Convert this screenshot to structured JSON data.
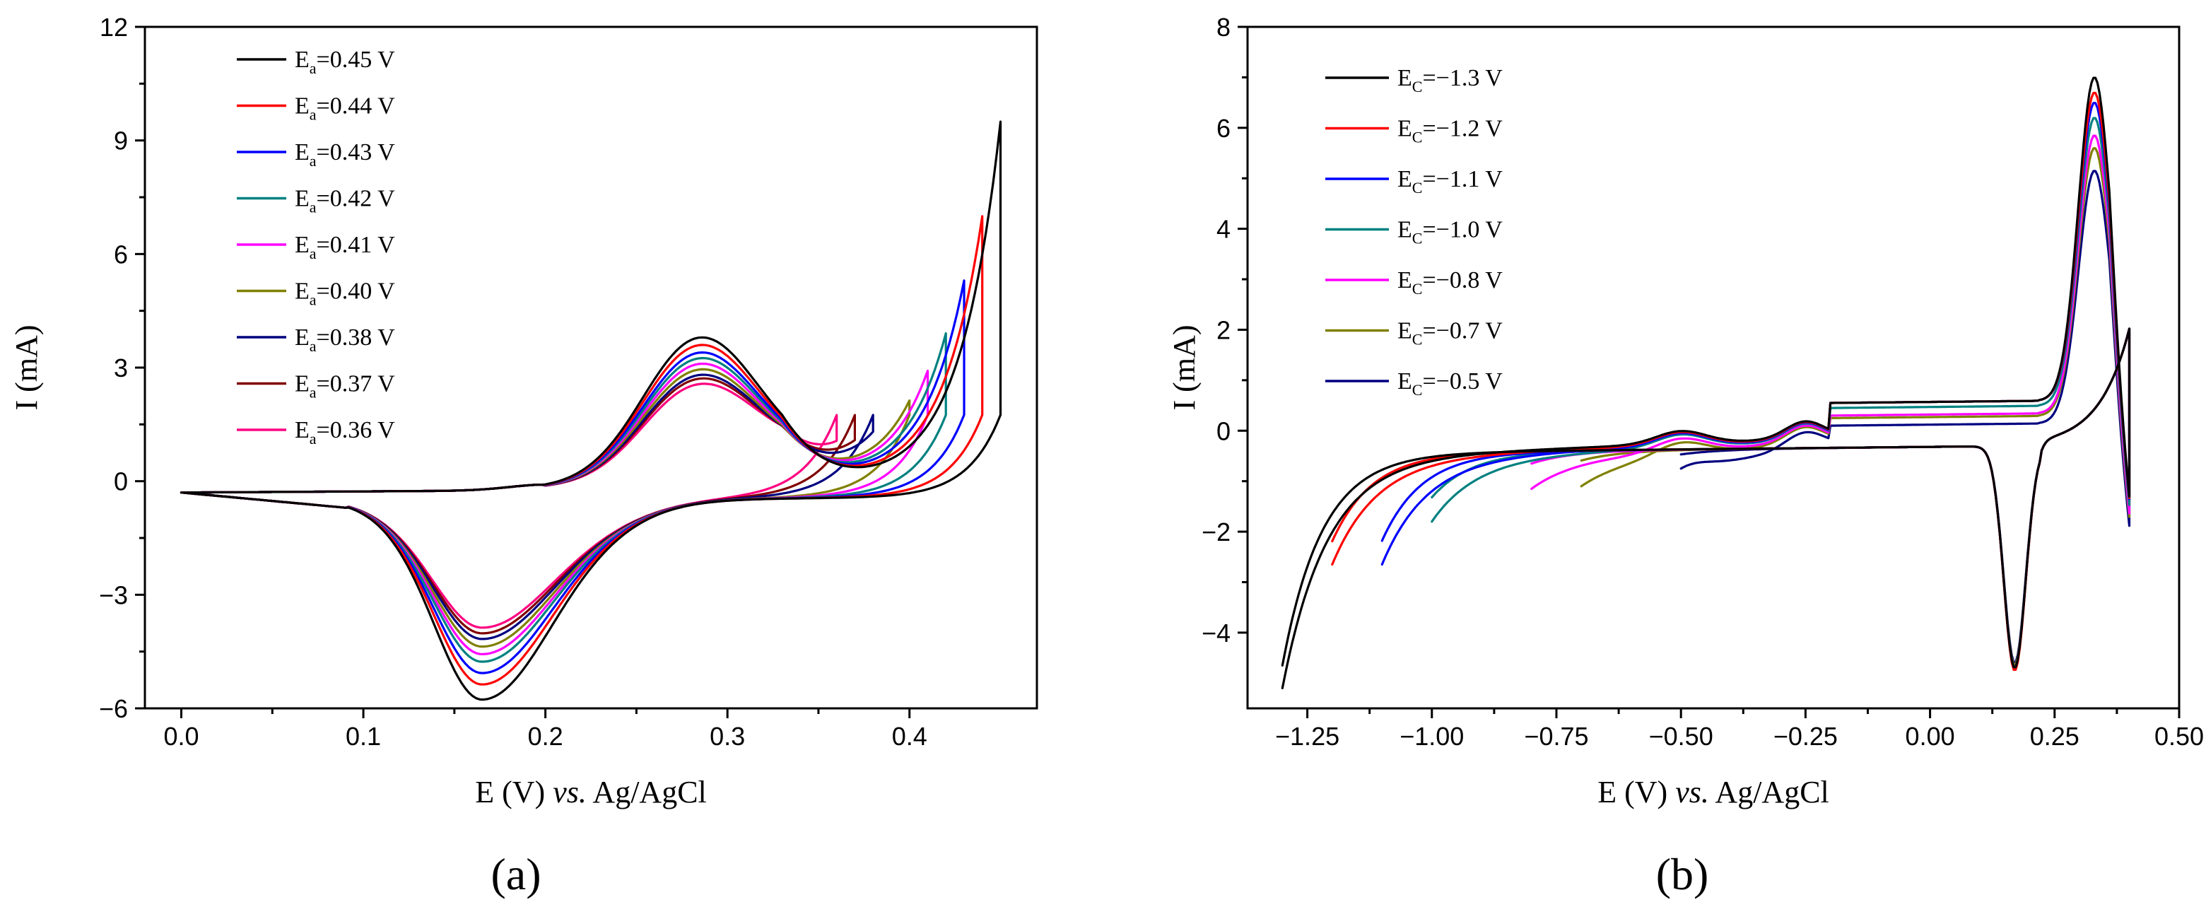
{
  "chart_data": [
    {
      "type": "line",
      "panel_label": "(a)",
      "xlabel_parts": [
        "E (V) ",
        "vs.",
        " Ag/AgCl"
      ],
      "ylabel": "I (mA)",
      "xlim": [
        -0.02,
        0.47
      ],
      "ylim": [
        -6,
        12
      ],
      "xticks": [
        0.0,
        0.1,
        0.2,
        0.3,
        0.4
      ],
      "xtick_labels": [
        "0.0",
        "0.1",
        "0.2",
        "0.3",
        "0.4"
      ],
      "yticks": [
        -6,
        -3,
        0,
        3,
        6,
        9,
        12
      ],
      "ytick_labels": [
        "−6",
        "−3",
        "0",
        "3",
        "6",
        "9",
        "12"
      ],
      "legend_position": "top-left",
      "anodic_peak_x": 0.285,
      "cathodic_peak_x": 0.165,
      "series": [
        {
          "name": "Ea=0.45 V",
          "sym": "E",
          "sub": "a",
          "value": "=0.45 V",
          "color": "#000000",
          "vertex": 0.45,
          "i_vertex": 9.6,
          "i_pa": 4.4,
          "i_pc": -5.1
        },
        {
          "name": "Ea=0.44 V",
          "sym": "E",
          "sub": "a",
          "value": "=0.44 V",
          "color": "#ff0000",
          "vertex": 0.44,
          "i_vertex": 7.1,
          "i_pa": 4.2,
          "i_pc": -4.7
        },
        {
          "name": "Ea=0.43 V",
          "sym": "E",
          "sub": "a",
          "value": "=0.43 V",
          "color": "#0000ff",
          "vertex": 0.43,
          "i_vertex": 5.4,
          "i_pa": 4.0,
          "i_pc": -4.4
        },
        {
          "name": "Ea=0.42 V",
          "sym": "E",
          "sub": "a",
          "value": "=0.42 V",
          "color": "#008080",
          "vertex": 0.42,
          "i_vertex": 4.0,
          "i_pa": 3.85,
          "i_pc": -4.1
        },
        {
          "name": "Ea=0.41 V",
          "sym": "E",
          "sub": "a",
          "value": "=0.41 V",
          "color": "#ff00ff",
          "vertex": 0.41,
          "i_vertex": 3.0,
          "i_pa": 3.7,
          "i_pc": -3.9
        },
        {
          "name": "Ea=0.40 V",
          "sym": "E",
          "sub": "a",
          "value": "=0.40 V",
          "color": "#808000",
          "vertex": 0.4,
          "i_vertex": 2.2,
          "i_pa": 3.55,
          "i_pc": -3.7
        },
        {
          "name": "Ea=0.38 V",
          "sym": "E",
          "sub": "a",
          "value": "=0.38 V",
          "color": "#000080",
          "vertex": 0.38,
          "i_vertex": 1.3,
          "i_pa": 3.4,
          "i_pc": -3.5
        },
        {
          "name": "Ea=0.37 V",
          "sym": "E",
          "sub": "a",
          "value": "=0.37 V",
          "color": "#800000",
          "vertex": 0.37,
          "i_vertex": 1.0,
          "i_pa": 3.3,
          "i_pc": -3.35
        },
        {
          "name": "Ea=0.36 V",
          "sym": "E",
          "sub": "a",
          "value": "=0.36 V",
          "color": "#ff0080",
          "vertex": 0.36,
          "i_vertex": 0.85,
          "i_pa": 3.15,
          "i_pc": -3.2
        }
      ]
    },
    {
      "type": "line",
      "panel_label": "(b)",
      "xlabel_parts": [
        "E (V) ",
        "vs.",
        " Ag/AgCl"
      ],
      "ylabel": "I (mA)",
      "xlim": [
        -1.37,
        0.5
      ],
      "ylim": [
        -5.5,
        8
      ],
      "xticks": [
        -1.25,
        -1.0,
        -0.75,
        -0.5,
        -0.25,
        0.0,
        0.25,
        0.5
      ],
      "xtick_labels": [
        "−1.25",
        "−1.00",
        "−0.75",
        "−0.50",
        "−0.25",
        "0.00",
        "0.25",
        "0.50"
      ],
      "yticks": [
        -4,
        -2,
        0,
        2,
        4,
        6,
        8
      ],
      "ytick_labels": [
        "−4",
        "−2",
        "0",
        "2",
        "4",
        "6",
        "8"
      ],
      "legend_position": "top-left",
      "cathodic_peak_x": 0.17,
      "anodic_peak_x": 0.33,
      "series": [
        {
          "name": "EC=−1.3 V",
          "sym": "E",
          "sub": "C",
          "value": "=−1.3 V",
          "color": "#000000",
          "vertex": -1.3,
          "i_vertex": -4.55,
          "i_pa": 6.9,
          "i_pc": -4.7,
          "fwd_plateau": 0.55
        },
        {
          "name": "EC=−1.2 V",
          "sym": "E",
          "sub": "C",
          "value": "=−1.2 V",
          "color": "#ff0000",
          "vertex": -1.2,
          "i_vertex": -2.1,
          "i_pa": 6.6,
          "i_pc": -4.75,
          "fwd_plateau": 0.55
        },
        {
          "name": "EC=−1.1 V",
          "sym": "E",
          "sub": "C",
          "value": "=−1.1 V",
          "color": "#0000ff",
          "vertex": -1.1,
          "i_vertex": -2.1,
          "i_pa": 6.4,
          "i_pc": -4.7,
          "fwd_plateau": 0.55
        },
        {
          "name": "EC=−1.0 V",
          "sym": "E",
          "sub": "C",
          "value": "=−1.0 V",
          "color": "#008080",
          "vertex": -1.0,
          "i_vertex": -1.25,
          "i_pa": 6.2,
          "i_pc": -4.7,
          "fwd_plateau": 0.45
        },
        {
          "name": "EC=−0.8 V",
          "sym": "E",
          "sub": "C",
          "value": "=−0.8 V",
          "color": "#ff00ff",
          "vertex": -0.8,
          "i_vertex": -0.6,
          "i_pa": 6.0,
          "i_pc": -4.7,
          "fwd_plateau": 0.3
        },
        {
          "name": "EC=−0.7 V",
          "sym": "E",
          "sub": "C",
          "value": "=−0.7 V",
          "color": "#808000",
          "vertex": -0.7,
          "i_vertex": -0.55,
          "i_pa": 5.8,
          "i_pc": -4.65,
          "fwd_plateau": 0.25
        },
        {
          "name": "EC=−0.5 V",
          "sym": "E",
          "sub": "C",
          "value": "=−0.5 V",
          "color": "#000080",
          "vertex": -0.5,
          "i_vertex": -0.45,
          "i_pa": 5.5,
          "i_pc": -4.6,
          "fwd_plateau": 0.1
        }
      ]
    }
  ]
}
